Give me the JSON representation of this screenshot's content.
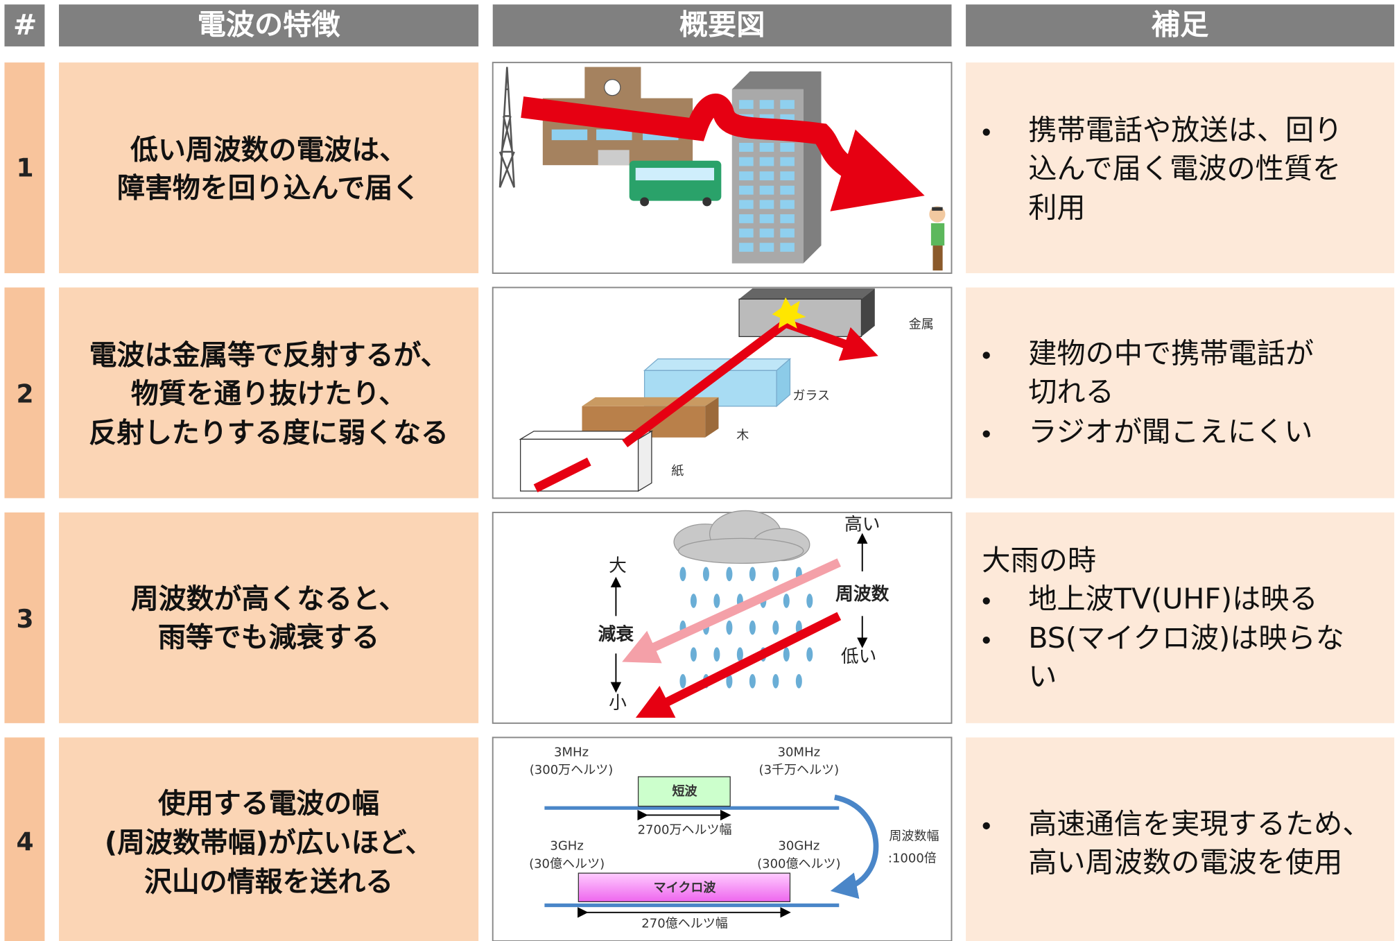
{
  "header": [
    "#",
    "電波の特徴",
    "概要図",
    "補足"
  ],
  "rows": [
    {
      "number": "1",
      "feature": [
        "低い周波数の電波は、",
        "障害物を回り込んで届く"
      ],
      "notes": {
        "items": [
          [
            "携帯電話や放送は、回り",
            "込んで届く電波の性質を",
            "利用"
          ]
        ]
      }
    },
    {
      "number": "2",
      "feature": [
        "電波は金属等で反射するが、",
        "物質を通り抜けたり、",
        "反射したりする度に弱くなる"
      ],
      "diagram": {
        "labels": [
          "金属",
          "ガラス",
          "木",
          "紙"
        ]
      },
      "notes": {
        "items": [
          [
            "建物の中で携帯電話が",
            "切れる"
          ],
          [
            "ラジオが聞こえにくい"
          ]
        ]
      }
    },
    {
      "number": "3",
      "feature": [
        "周波数が高くなると、",
        "雨等でも減衰する"
      ],
      "diagram": {
        "labels": [
          "高い",
          "周波数",
          "低い",
          "大",
          "減衰",
          "小"
        ]
      },
      "notes": {
        "heading": "大雨の時",
        "items": [
          [
            "地上波TV(UHF)は映る"
          ],
          [
            "BS(マイクロ波)は映らな",
            "い"
          ]
        ]
      }
    },
    {
      "number": "4",
      "feature": [
        "使用する電波の幅",
        "(周波数帯幅)が広いほど、",
        "沢山の情報を送れる"
      ],
      "diagram": {
        "labels": [
          "3MHz",
          "(300万ヘルツ)",
          "30MHz",
          "(3千万ヘルツ)",
          "短波",
          "2700万ヘルツ幅",
          "3GHz",
          "(30億ヘルツ)",
          "30GHz",
          "(300億ヘルツ)",
          "マイクロ波",
          "270億ヘルツ幅",
          "周波数幅",
          ":1000倍"
        ]
      },
      "notes": {
        "items": [
          [
            "高速通信を実現するため、",
            "高い周波数の電波を使用"
          ]
        ]
      }
    }
  ]
}
